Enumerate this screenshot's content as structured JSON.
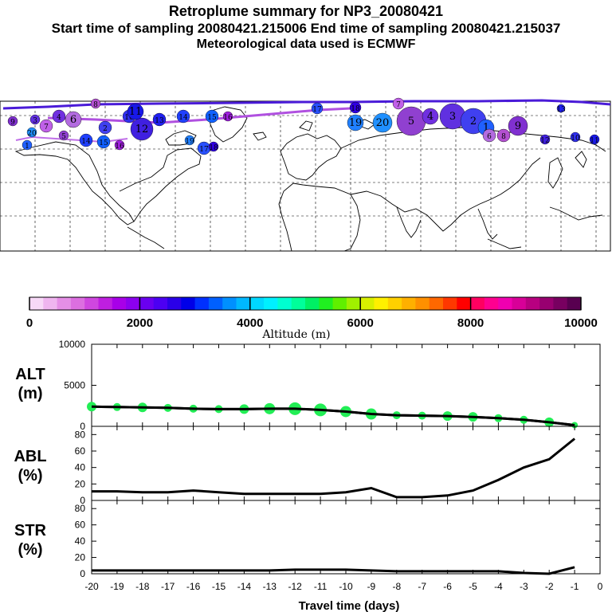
{
  "header": {
    "title": "Retroplume summary for NP3_20080421",
    "line2": "Start time of sampling 20080421.215006      End time of sampling 20080421.215037",
    "line3": "Meteorological data used is ECMWF"
  },
  "colorbar": {
    "label": "Altitude (m)",
    "tick_labels": [
      "0",
      "2000",
      "4000",
      "6000",
      "8000",
      "10000"
    ],
    "colors": [
      "#f7d9f7",
      "#efb5ef",
      "#e58fe6",
      "#dc6fe0",
      "#cf47df",
      "#bf1fe0",
      "#a800e8",
      "#8c00ef",
      "#6a00f0",
      "#4c00f2",
      "#2a00e8",
      "#0000e8",
      "#0030ff",
      "#0060ff",
      "#0090ff",
      "#00b8ff",
      "#00d8ff",
      "#00f0ff",
      "#00ffd0",
      "#00ff9a",
      "#00f064",
      "#20f020",
      "#60f000",
      "#a0f000",
      "#d8f000",
      "#fff000",
      "#ffd000",
      "#ffb000",
      "#ff9000",
      "#ff6800",
      "#ff3800",
      "#ff0000",
      "#ff0060",
      "#ff0090",
      "#f000b0",
      "#d80098",
      "#b80080",
      "#980070",
      "#780060",
      "#580050"
    ]
  },
  "chart_data": [
    {
      "type": "line",
      "panel": "ALT",
      "ylabel_line1": "ALT",
      "ylabel_line2": "(m)",
      "ylim": [
        0,
        10000
      ],
      "yticks": [
        "10000",
        "5000",
        "0"
      ],
      "x": [
        -20,
        -19,
        -18,
        -17,
        -16,
        -15,
        -14,
        -13,
        -12,
        -11,
        -10,
        -9,
        -8,
        -7,
        -6,
        -5,
        -4,
        -3,
        -2,
        -1
      ],
      "values": [
        2400,
        2350,
        2300,
        2250,
        2150,
        2100,
        2100,
        2150,
        2150,
        2000,
        1800,
        1500,
        1350,
        1300,
        1250,
        1150,
        1000,
        800,
        500,
        150
      ],
      "marker_color": "#22ee55",
      "marker_sizes": [
        6,
        5,
        6,
        5,
        5,
        5,
        6,
        7,
        8,
        8,
        7,
        7,
        5,
        5,
        6,
        6,
        5,
        5,
        6,
        4
      ]
    },
    {
      "type": "line",
      "panel": "ABL",
      "ylabel_line1": "ABL",
      "ylabel_line2": "(%)",
      "ylim": [
        0,
        90
      ],
      "yticks": [
        "80",
        "60",
        "40",
        "20",
        "0"
      ],
      "x": [
        -20,
        -19,
        -18,
        -17,
        -16,
        -15,
        -14,
        -13,
        -12,
        -11,
        -10,
        -9,
        -8,
        -7,
        -6,
        -5,
        -4,
        -3,
        -2,
        -1
      ],
      "values": [
        11,
        11,
        10,
        10,
        12,
        10,
        8,
        8,
        8,
        8,
        10,
        15,
        4,
        4,
        6,
        12,
        25,
        40,
        50,
        75
      ]
    },
    {
      "type": "line",
      "panel": "STR",
      "ylabel_line1": "STR",
      "ylabel_line2": "(%)",
      "ylim": [
        0,
        90
      ],
      "yticks": [
        "80",
        "60",
        "40",
        "20",
        "0"
      ],
      "x": [
        -20,
        -19,
        -18,
        -17,
        -16,
        -15,
        -14,
        -13,
        -12,
        -11,
        -10,
        -9,
        -8,
        -7,
        -6,
        -5,
        -4,
        -3,
        -2,
        -1
      ],
      "values": [
        4,
        4,
        4,
        4,
        4,
        4,
        4,
        4,
        5,
        5,
        5,
        4,
        3,
        3,
        3,
        3,
        3,
        1,
        0,
        8
      ],
      "xlabel": "Travel time (days)",
      "xticks": [
        "-20",
        "-19",
        "-18",
        "-17",
        "-16",
        "-15",
        "-14",
        "-13",
        "-12",
        "-11",
        "-10",
        "-9",
        "-8",
        "-7",
        "-6",
        "-5",
        "-4",
        "-3",
        "-2",
        "-1",
        "0"
      ]
    }
  ],
  "map": {
    "clusters": [
      {
        "label": "6",
        "color": "#b36be0",
        "v": 1.0
      },
      {
        "label": "8",
        "color": "#b350d0",
        "v": 1.0
      },
      {
        "label": "9",
        "color": "#8030d0",
        "v": 1.0
      },
      {
        "label": "12",
        "color": "#4020e0",
        "v": 1.0
      },
      {
        "label": "10",
        "color": "#3030f0",
        "v": 1.0
      },
      {
        "label": "11",
        "color": "#1818e8",
        "v": 1.0
      },
      {
        "label": "13",
        "color": "#2020f0",
        "v": 1.0
      },
      {
        "label": "14",
        "color": "#2040ff",
        "v": 1.0
      },
      {
        "label": "15",
        "color": "#1060ff",
        "v": 1.0
      },
      {
        "label": "16",
        "color": "#a020e0",
        "v": 1.0
      },
      {
        "label": "17",
        "color": "#2850ff",
        "v": 1.0
      },
      {
        "label": "18",
        "color": "#3000e0",
        "v": 1.0
      },
      {
        "label": "19",
        "color": "#2080ff",
        "v": 1.0
      },
      {
        "label": "20",
        "color": "#2090ff",
        "v": 1.0
      },
      {
        "label": "7",
        "color": "#c060e8",
        "v": 1.0
      },
      {
        "label": "5",
        "color": "#9040d0",
        "v": 1.0
      },
      {
        "label": "4",
        "color": "#7030e0",
        "v": 1.0
      },
      {
        "label": "3",
        "color": "#6030e0",
        "v": 1.0
      },
      {
        "label": "2",
        "color": "#4040f0",
        "v": 1.0
      },
      {
        "label": "1",
        "color": "#2060ff",
        "v": 1.0
      }
    ]
  }
}
